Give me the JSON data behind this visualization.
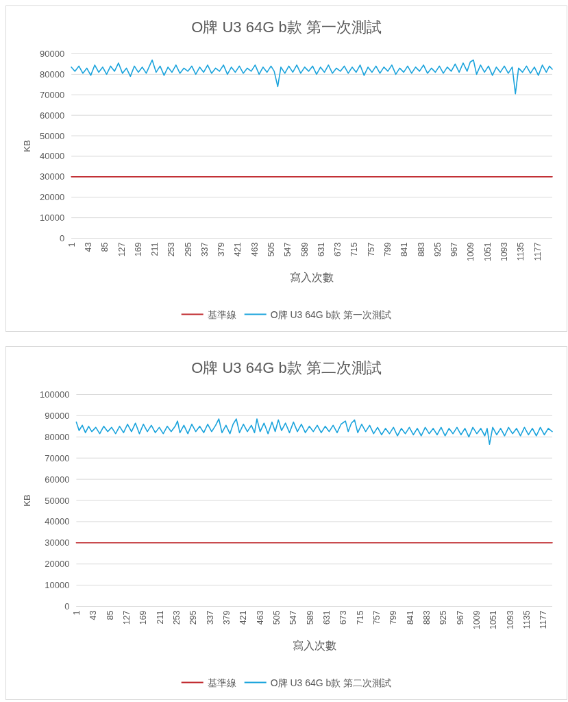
{
  "chart_data": [
    {
      "type": "line",
      "title": "O牌 U3 64G b款 第一次測試",
      "xlabel": "寫入次數",
      "ylabel": "KB",
      "xlim": [
        1,
        1215
      ],
      "xticks": [
        1,
        43,
        85,
        127,
        169,
        211,
        253,
        295,
        337,
        379,
        421,
        463,
        505,
        547,
        589,
        631,
        673,
        715,
        757,
        799,
        841,
        883,
        925,
        967,
        1009,
        1051,
        1093,
        1135,
        1177
      ],
      "ylim": [
        0,
        90000
      ],
      "yticks": [
        0,
        10000,
        20000,
        30000,
        40000,
        50000,
        60000,
        70000,
        80000,
        90000
      ],
      "grid": "y",
      "legend": "bottom",
      "series": [
        {
          "name": "基準線",
          "color": "#c0282d",
          "x": [
            1,
            1215
          ],
          "values": [
            30000,
            30000
          ]
        },
        {
          "name": "O牌 U3 64G b款 第一次測試",
          "color": "#1aa3dc",
          "x": [
            1,
            10,
            20,
            30,
            40,
            50,
            60,
            70,
            80,
            90,
            100,
            110,
            120,
            130,
            140,
            150,
            160,
            170,
            180,
            190,
            205,
            215,
            225,
            235,
            245,
            255,
            265,
            275,
            285,
            295,
            305,
            315,
            325,
            335,
            345,
            355,
            365,
            375,
            385,
            395,
            405,
            415,
            425,
            435,
            445,
            455,
            465,
            475,
            485,
            495,
            505,
            513,
            522,
            530,
            540,
            550,
            560,
            570,
            580,
            590,
            600,
            610,
            620,
            630,
            640,
            650,
            660,
            670,
            680,
            690,
            700,
            710,
            720,
            730,
            740,
            750,
            760,
            770,
            780,
            790,
            800,
            810,
            820,
            830,
            840,
            850,
            860,
            870,
            880,
            890,
            900,
            910,
            920,
            930,
            940,
            950,
            960,
            970,
            980,
            990,
            1000,
            1008,
            1016,
            1024,
            1034,
            1044,
            1054,
            1064,
            1074,
            1084,
            1094,
            1104,
            1114,
            1122,
            1130,
            1140,
            1150,
            1160,
            1170,
            1180,
            1190,
            1200,
            1208,
            1215
          ],
          "values": [
            83500,
            81500,
            84000,
            80500,
            83000,
            79500,
            84500,
            81000,
            83500,
            80000,
            84000,
            81500,
            85500,
            80500,
            83000,
            79000,
            84000,
            81000,
            83500,
            80500,
            87000,
            81000,
            84000,
            79500,
            83500,
            81000,
            84500,
            80500,
            83000,
            81500,
            84000,
            80000,
            83500,
            81000,
            84500,
            80500,
            83000,
            81500,
            84500,
            80000,
            83500,
            81000,
            84000,
            80500,
            83000,
            81500,
            84500,
            80000,
            83500,
            81000,
            84000,
            81500,
            74000,
            83500,
            80500,
            84000,
            81000,
            84500,
            80500,
            83500,
            81500,
            84000,
            80000,
            83500,
            81000,
            84500,
            80500,
            83000,
            81500,
            84000,
            80500,
            83500,
            81000,
            84500,
            79500,
            83500,
            81000,
            84000,
            80500,
            83500,
            81500,
            84500,
            80000,
            83000,
            81000,
            84000,
            80500,
            83500,
            81500,
            84500,
            80500,
            83000,
            81000,
            84000,
            80500,
            83500,
            81500,
            85000,
            81000,
            85500,
            81500,
            86000,
            87000,
            80000,
            84500,
            81000,
            84000,
            79500,
            83500,
            81000,
            84000,
            80500,
            83500,
            70500,
            83000,
            81000,
            84000,
            80500,
            83500,
            79500,
            84500,
            81000,
            84000,
            82500
          ]
        }
      ]
    },
    {
      "type": "line",
      "title": "O牌 U3 64G b款 第二次測試",
      "xlabel": "寫入次數",
      "ylabel": "KB",
      "xlim": [
        1,
        1200
      ],
      "xticks": [
        1,
        43,
        85,
        127,
        169,
        211,
        253,
        295,
        337,
        379,
        421,
        463,
        505,
        547,
        589,
        631,
        673,
        715,
        757,
        799,
        841,
        883,
        925,
        967,
        1009,
        1051,
        1093,
        1135,
        1177
      ],
      "ylim": [
        0,
        100000
      ],
      "yticks": [
        0,
        10000,
        20000,
        30000,
        40000,
        50000,
        60000,
        70000,
        80000,
        90000,
        100000
      ],
      "grid": "y",
      "legend": "bottom",
      "series": [
        {
          "name": "基準線",
          "color": "#c0282d",
          "x": [
            1,
            1200
          ],
          "values": [
            30000,
            30000
          ]
        },
        {
          "name": "O牌 U3 64G b款 第二次測試",
          "color": "#1aa3dc",
          "x": [
            1,
            8,
            16,
            24,
            32,
            40,
            50,
            60,
            70,
            80,
            90,
            100,
            110,
            120,
            130,
            140,
            150,
            160,
            170,
            180,
            190,
            200,
            210,
            220,
            230,
            240,
            250,
            256,
            262,
            272,
            282,
            292,
            302,
            312,
            322,
            332,
            342,
            352,
            360,
            368,
            378,
            388,
            396,
            404,
            412,
            422,
            432,
            442,
            450,
            456,
            464,
            474,
            484,
            494,
            502,
            510,
            518,
            528,
            538,
            548,
            558,
            568,
            578,
            588,
            598,
            608,
            618,
            628,
            638,
            648,
            658,
            668,
            679,
            686,
            694,
            702,
            710,
            720,
            730,
            740,
            750,
            760,
            770,
            780,
            790,
            800,
            810,
            820,
            830,
            840,
            850,
            860,
            870,
            880,
            890,
            900,
            910,
            920,
            930,
            940,
            950,
            960,
            970,
            980,
            990,
            1000,
            1010,
            1020,
            1030,
            1036,
            1042,
            1050,
            1060,
            1070,
            1080,
            1090,
            1100,
            1110,
            1120,
            1130,
            1140,
            1150,
            1160,
            1170,
            1180,
            1190,
            1200
          ],
          "values": [
            87000,
            83000,
            85500,
            82000,
            85000,
            82500,
            84500,
            81500,
            85000,
            82500,
            84500,
            81500,
            85000,
            82000,
            86000,
            82500,
            86500,
            81500,
            86000,
            82500,
            85500,
            82000,
            84500,
            81500,
            85000,
            82500,
            85000,
            87500,
            82000,
            85500,
            81500,
            86000,
            82500,
            85000,
            82000,
            86000,
            82500,
            85500,
            88500,
            82000,
            85500,
            81500,
            86000,
            88500,
            82000,
            86000,
            82500,
            85500,
            82000,
            88500,
            82500,
            86500,
            81500,
            87000,
            82500,
            88000,
            83000,
            86500,
            82000,
            87000,
            82500,
            86000,
            82000,
            85000,
            82500,
            85500,
            82000,
            85000,
            82500,
            85500,
            82000,
            86000,
            87500,
            82500,
            86500,
            88000,
            82000,
            86000,
            82500,
            85500,
            81500,
            84500,
            81000,
            84000,
            81500,
            84500,
            80500,
            84000,
            81500,
            84500,
            81000,
            84000,
            80500,
            84500,
            81500,
            84000,
            81000,
            84500,
            80500,
            84000,
            81500,
            84500,
            81000,
            84000,
            80000,
            84500,
            81500,
            84000,
            80500,
            84000,
            76500,
            84500,
            81000,
            84000,
            80500,
            84500,
            81500,
            84000,
            80500,
            84500,
            81000,
            84000,
            80500,
            84500,
            81000,
            84000,
            82500
          ]
        }
      ]
    }
  ]
}
